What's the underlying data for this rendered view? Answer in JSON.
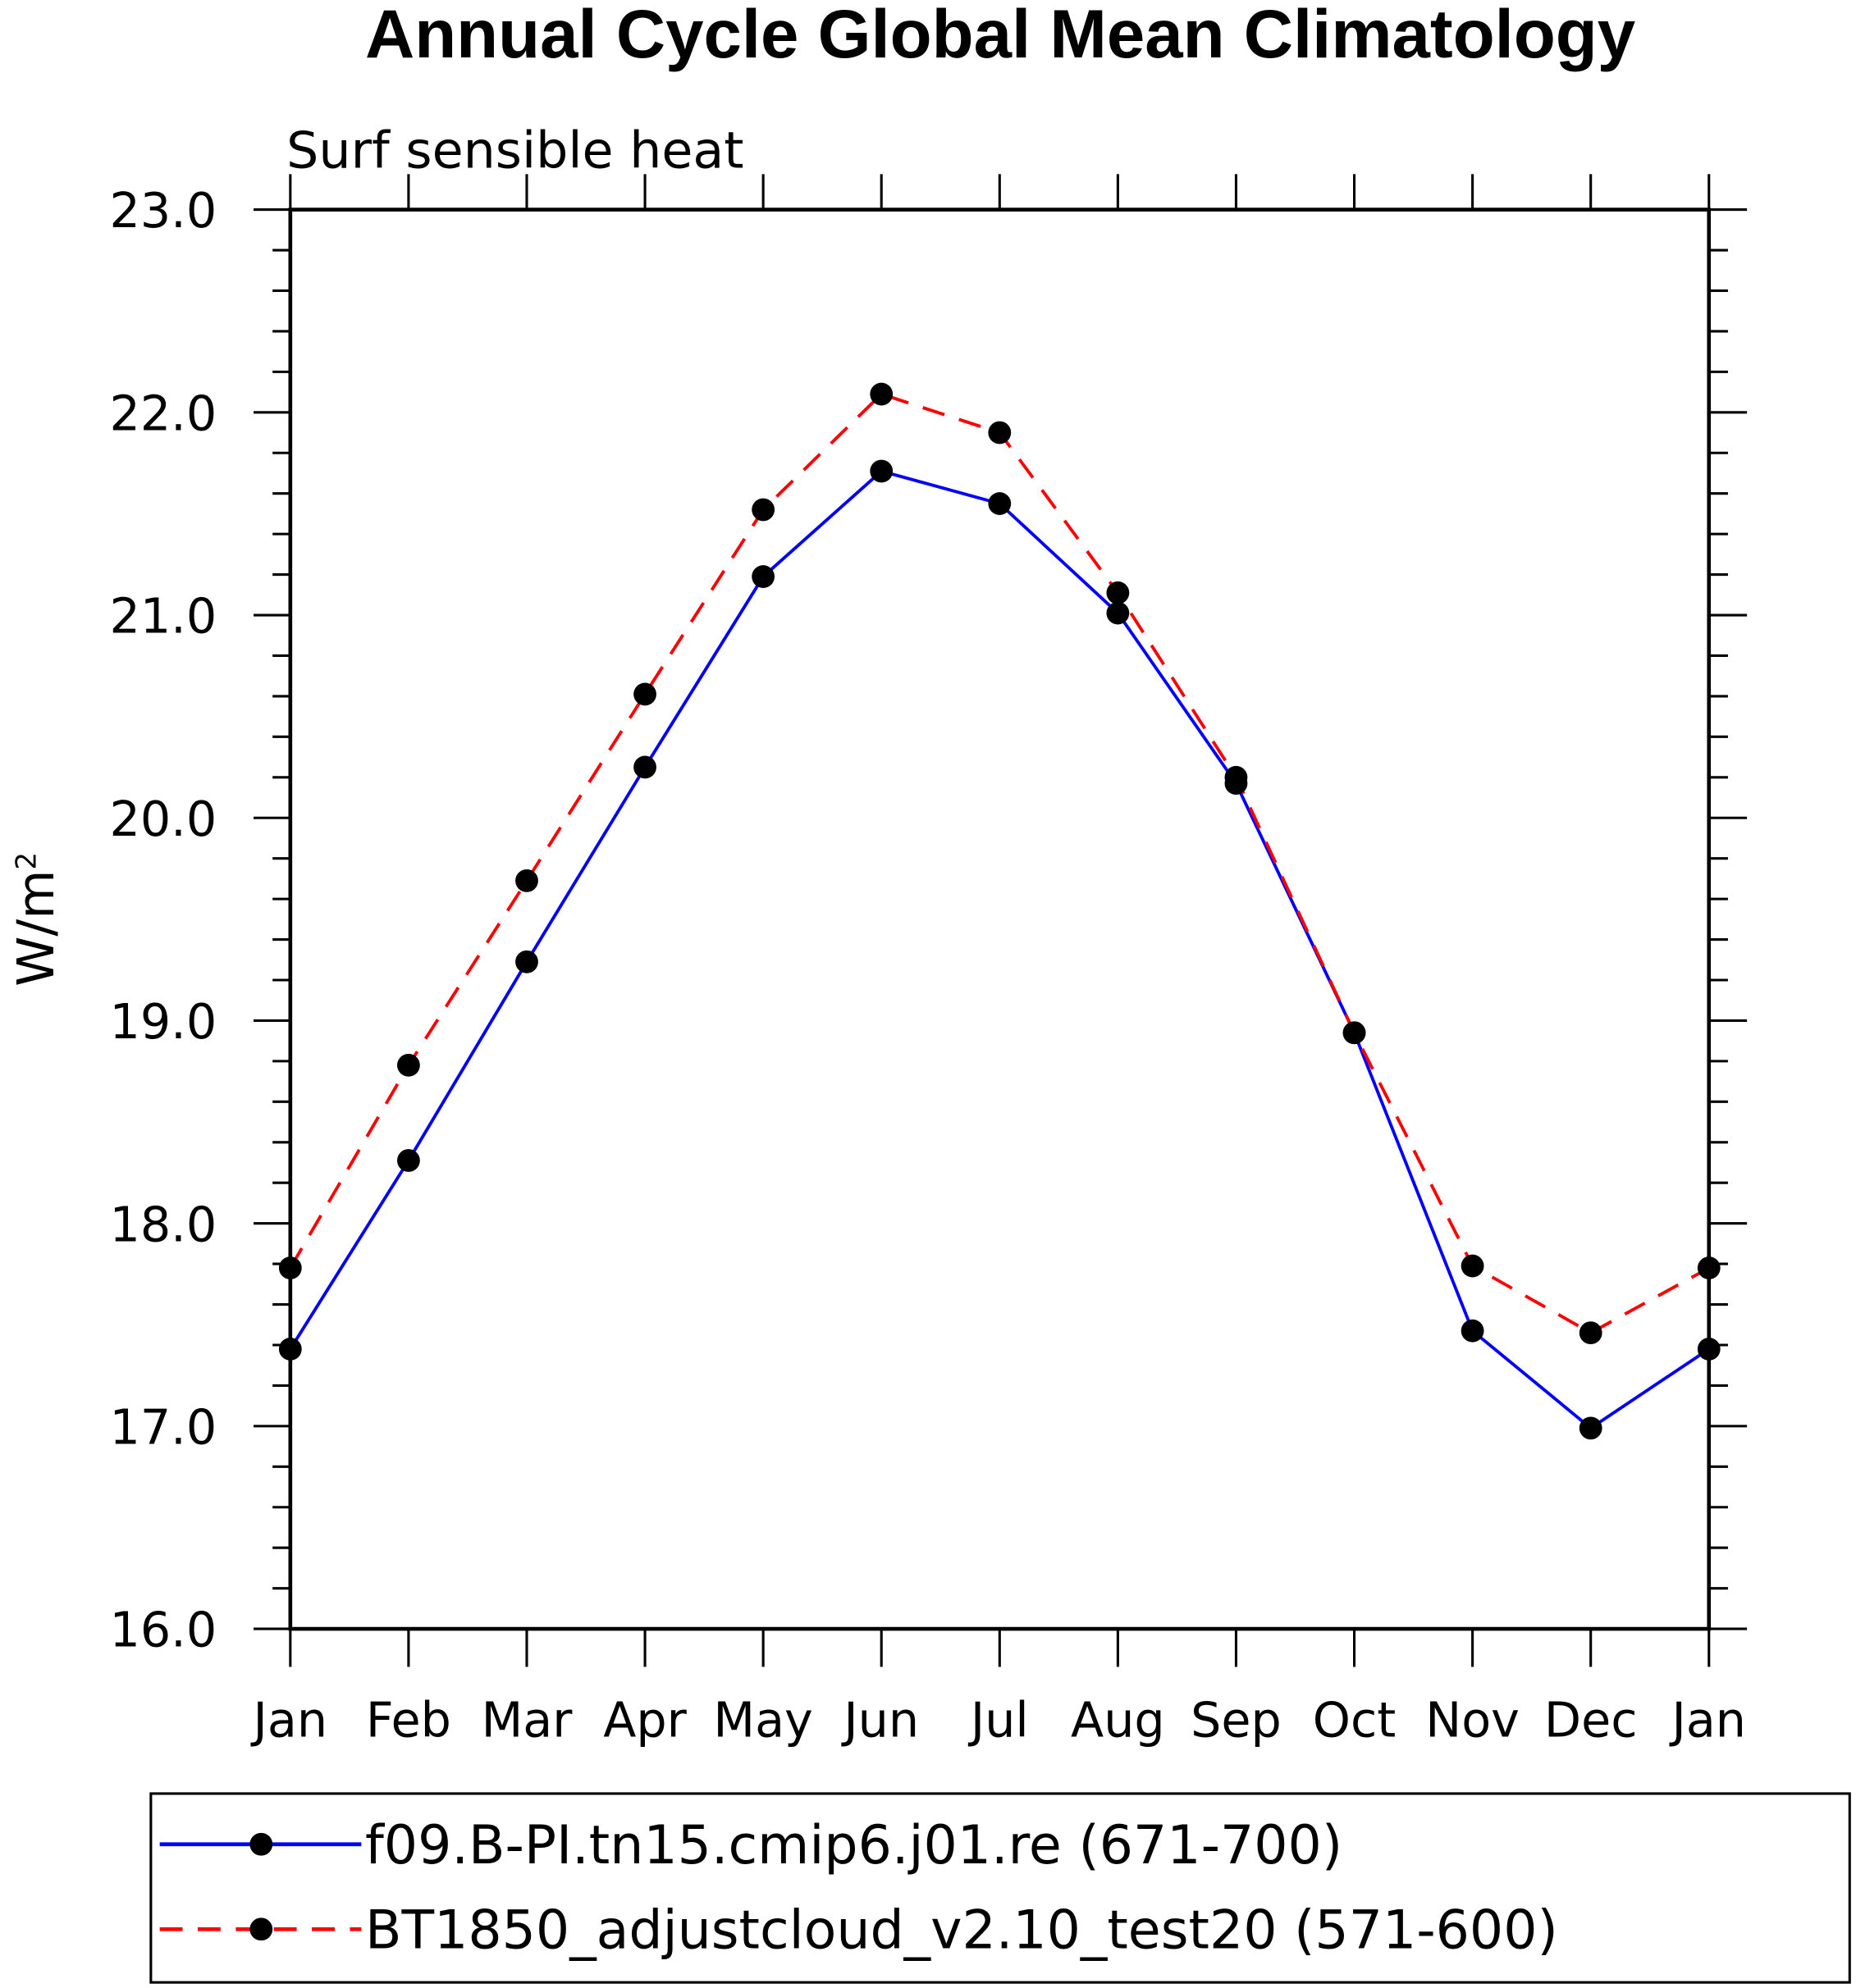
{
  "chart_data": {
    "type": "line",
    "title": "Annual Cycle Global Mean Climatology",
    "subtitle": "Surf sensible heat",
    "xlabel": "",
    "ylabel": "W/m",
    "ylabel_superscript": "2",
    "ylim": [
      16.0,
      23.0
    ],
    "yticks": [
      "16.0",
      "17.0",
      "18.0",
      "19.0",
      "20.0",
      "21.0",
      "22.0",
      "23.0"
    ],
    "categories": [
      "Jan",
      "Feb",
      "Mar",
      "Apr",
      "May",
      "Jun",
      "Jul",
      "Aug",
      "Sep",
      "Oct",
      "Nov",
      "Dec",
      "Jan"
    ],
    "grid": false,
    "legend_placement": "bottom",
    "series": [
      {
        "name": "f09.B-PI.tn15.cmip6.j01.re (671-700)",
        "color": "#0000ff",
        "dash": "solid",
        "values": [
          17.38,
          18.31,
          19.29,
          20.25,
          21.19,
          21.71,
          21.55,
          21.01,
          20.17,
          18.94,
          17.47,
          16.99,
          17.38
        ]
      },
      {
        "name": "BT1850_adjustcloud_v2.10_test20 (571-600)",
        "color": "#ff0000",
        "dash": "dashed",
        "values": [
          17.78,
          18.78,
          19.69,
          20.61,
          21.52,
          22.09,
          21.9,
          21.11,
          20.2,
          18.94,
          17.79,
          17.46,
          17.78
        ]
      }
    ]
  }
}
